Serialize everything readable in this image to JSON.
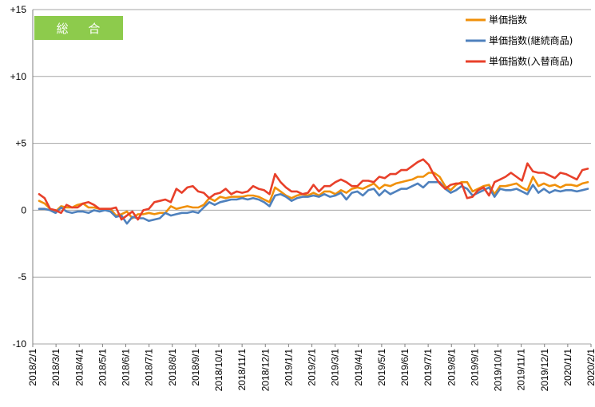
{
  "chart_data": {
    "type": "line",
    "badge": "総 合",
    "ylim": [
      -10,
      15
    ],
    "y_ticks": [
      "+15",
      "+10",
      "+5",
      "0",
      "-5",
      "-10"
    ],
    "y_tick_values": [
      15,
      10,
      5,
      0,
      -5,
      -10
    ],
    "x_tick_labels": [
      "2018/2/1",
      "2018/3/1",
      "2018/4/1",
      "2018/5/1",
      "2018/6/1",
      "2018/7/1",
      "2018/8/1",
      "2018/9/1",
      "2018/10/1",
      "2018/11/1",
      "2018/12/1",
      "2019/1/1",
      "2019/2/1",
      "2019/3/1",
      "2019/4/1",
      "2019/5/1",
      "2019/6/1",
      "2019/7/1",
      "2019/8/1",
      "2019/9/1",
      "2019/10/1",
      "2019/11/1",
      "2019/12/1",
      "2020/1/1",
      "2020/2/1"
    ],
    "legend_position": "top-right",
    "grid": "horizontal",
    "series": [
      {
        "name": "単価指数",
        "color": "#F0900A",
        "values": [
          0.7,
          0.5,
          0.1,
          -0.1,
          0.3,
          0.2,
          0.2,
          0.4,
          0.5,
          0.2,
          0.2,
          0.1,
          0.1,
          0.1,
          -0.4,
          -0.3,
          -0.1,
          -0.6,
          -0.3,
          -0.3,
          -0.2,
          -0.3,
          -0.2,
          -0.2,
          0.3,
          0.1,
          0.2,
          0.3,
          0.2,
          0.2,
          0.4,
          0.9,
          0.7,
          1.0,
          0.9,
          1.0,
          1.0,
          1.0,
          1.1,
          1.1,
          1.0,
          0.8,
          0.6,
          1.7,
          1.4,
          1.1,
          0.9,
          1.1,
          1.2,
          1.1,
          1.3,
          1.1,
          1.4,
          1.4,
          1.2,
          1.5,
          1.3,
          1.6,
          1.7,
          1.6,
          1.8,
          2.0,
          1.6,
          1.9,
          1.8,
          2.0,
          2.1,
          2.2,
          2.3,
          2.5,
          2.5,
          2.8,
          2.8,
          2.5,
          1.8,
          1.5,
          1.9,
          2.1,
          2.1,
          1.4,
          1.6,
          1.8,
          1.9,
          1.2,
          1.8,
          1.8,
          1.9,
          2.0,
          1.7,
          1.5,
          2.5,
          1.8,
          2.0,
          1.8,
          1.9,
          1.7,
          1.9,
          1.9,
          1.8,
          2.0,
          2.1
        ]
      },
      {
        "name": "単価指数(継続商品)",
        "color": "#4F81BD",
        "values": [
          0.1,
          0.1,
          0.0,
          -0.2,
          0.2,
          -0.1,
          -0.2,
          -0.1,
          -0.1,
          -0.2,
          0.0,
          -0.1,
          0.0,
          -0.1,
          -0.5,
          -0.4,
          -1.0,
          -0.5,
          -0.6,
          -0.6,
          -0.8,
          -0.7,
          -0.6,
          -0.2,
          -0.4,
          -0.3,
          -0.2,
          -0.2,
          -0.1,
          -0.2,
          0.2,
          0.6,
          0.4,
          0.6,
          0.7,
          0.8,
          0.8,
          0.9,
          0.8,
          0.9,
          0.8,
          0.6,
          0.3,
          1.1,
          1.2,
          1.0,
          0.7,
          0.9,
          1.0,
          1.0,
          1.1,
          1.0,
          1.2,
          1.0,
          1.1,
          1.3,
          0.8,
          1.3,
          1.4,
          1.1,
          1.5,
          1.6,
          1.1,
          1.5,
          1.2,
          1.4,
          1.6,
          1.6,
          1.8,
          2.0,
          1.7,
          2.1,
          2.1,
          2.1,
          1.6,
          1.3,
          1.5,
          1.8,
          1.6,
          1.1,
          1.3,
          1.5,
          1.7,
          1.0,
          1.6,
          1.5,
          1.5,
          1.6,
          1.4,
          1.2,
          1.9,
          1.3,
          1.6,
          1.3,
          1.5,
          1.4,
          1.5,
          1.5,
          1.4,
          1.5,
          1.6
        ]
      },
      {
        "name": "単価指数(入替商品)",
        "color": "#E8402A",
        "values": [
          1.2,
          0.9,
          0.1,
          0.0,
          -0.2,
          0.4,
          0.2,
          0.2,
          0.5,
          0.6,
          0.4,
          0.1,
          0.1,
          0.1,
          0.2,
          -0.7,
          -0.4,
          -0.1,
          -0.7,
          0.0,
          0.1,
          0.6,
          0.7,
          0.8,
          0.6,
          1.6,
          1.3,
          1.7,
          1.8,
          1.4,
          1.3,
          0.9,
          1.2,
          1.3,
          1.6,
          1.2,
          1.4,
          1.3,
          1.4,
          1.8,
          1.6,
          1.5,
          1.2,
          2.7,
          2.1,
          1.7,
          1.4,
          1.4,
          1.2,
          1.3,
          1.9,
          1.4,
          1.8,
          1.8,
          2.1,
          2.3,
          2.1,
          1.8,
          1.8,
          2.2,
          2.2,
          2.1,
          2.5,
          2.4,
          2.7,
          2.7,
          3.0,
          3.0,
          3.3,
          3.6,
          3.8,
          3.4,
          2.6,
          2.0,
          1.6,
          1.9,
          2.0,
          2.0,
          0.9,
          1.0,
          1.5,
          1.7,
          1.1,
          2.1,
          2.3,
          2.5,
          2.8,
          2.5,
          2.2,
          3.5,
          2.9,
          2.8,
          2.8,
          2.6,
          2.4,
          2.8,
          2.7,
          2.5,
          2.3,
          3.0,
          3.1
        ]
      }
    ]
  }
}
